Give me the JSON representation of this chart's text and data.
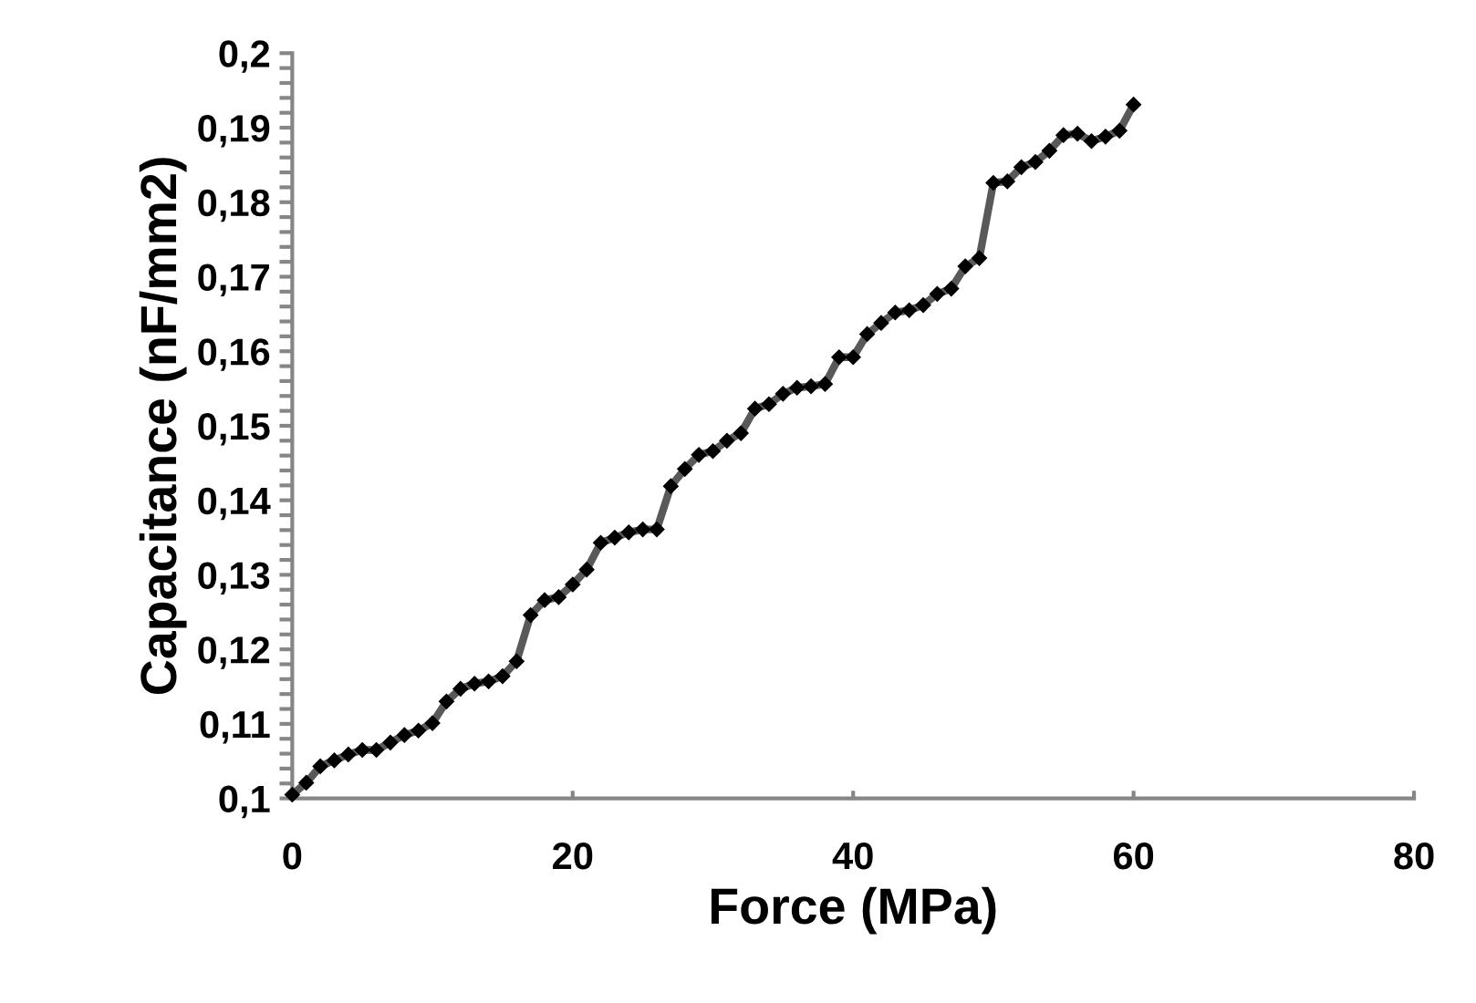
{
  "chart_data": {
    "type": "line",
    "xlabel": "Force (MPa)",
    "ylabel": "Capacitance (nF/mm2)",
    "x": [
      0,
      1,
      2,
      3,
      4,
      5,
      6,
      7,
      8,
      9,
      10,
      11,
      12,
      13,
      14,
      15,
      16,
      17,
      18,
      19,
      20,
      21,
      22,
      23,
      24,
      25,
      26,
      27,
      28,
      29,
      30,
      31,
      32,
      33,
      34,
      35,
      36,
      37,
      38,
      39,
      40,
      41,
      42,
      43,
      44,
      45,
      46,
      47,
      48,
      49,
      50,
      51,
      52,
      53,
      54,
      55,
      56,
      57,
      58,
      59,
      60
    ],
    "series": [
      {
        "color": "#595959",
        "values": [
          0.1005,
          0.1021,
          0.1043,
          0.1051,
          0.1059,
          0.1065,
          0.1065,
          0.1075,
          0.1085,
          0.1091,
          0.1101,
          0.113,
          0.1147,
          0.1154,
          0.1157,
          0.1164,
          0.1184,
          0.1246,
          0.1266,
          0.127,
          0.1287,
          0.1307,
          0.1343,
          0.135,
          0.1357,
          0.1361,
          0.1361,
          0.1419,
          0.1442,
          0.1461,
          0.1466,
          0.148,
          0.149,
          0.1523,
          0.1529,
          0.1543,
          0.1551,
          0.1553,
          0.1556,
          0.1592,
          0.1592,
          0.1623,
          0.1638,
          0.1652,
          0.1655,
          0.1662,
          0.1677,
          0.1684,
          0.1714,
          0.1725,
          0.1826,
          0.1828,
          0.1847,
          0.1854,
          0.1869,
          0.189,
          0.1892,
          0.1882,
          0.1888,
          0.1896,
          0.1931
        ]
      }
    ],
    "marker": "diamond",
    "line_style": "solid",
    "grid": false,
    "legend": false,
    "xlim": [
      0,
      80
    ],
    "xticks": [
      0,
      20,
      40,
      60,
      80
    ],
    "ylim": [
      0.1,
      0.2
    ],
    "yticks": [
      {
        "value": 0.1,
        "label": "0,1"
      },
      {
        "value": 0.11,
        "label": "0,11"
      },
      {
        "value": 0.12,
        "label": "0,12"
      },
      {
        "value": 0.13,
        "label": "0,13"
      },
      {
        "value": 0.14,
        "label": "0,14"
      },
      {
        "value": 0.15,
        "label": "0,15"
      },
      {
        "value": 0.16,
        "label": "0,16"
      },
      {
        "value": 0.17,
        "label": "0,17"
      },
      {
        "value": 0.18,
        "label": "0,18"
      },
      {
        "value": 0.19,
        "label": "0,19"
      },
      {
        "value": 0.2,
        "label": "0,2"
      }
    ]
  }
}
